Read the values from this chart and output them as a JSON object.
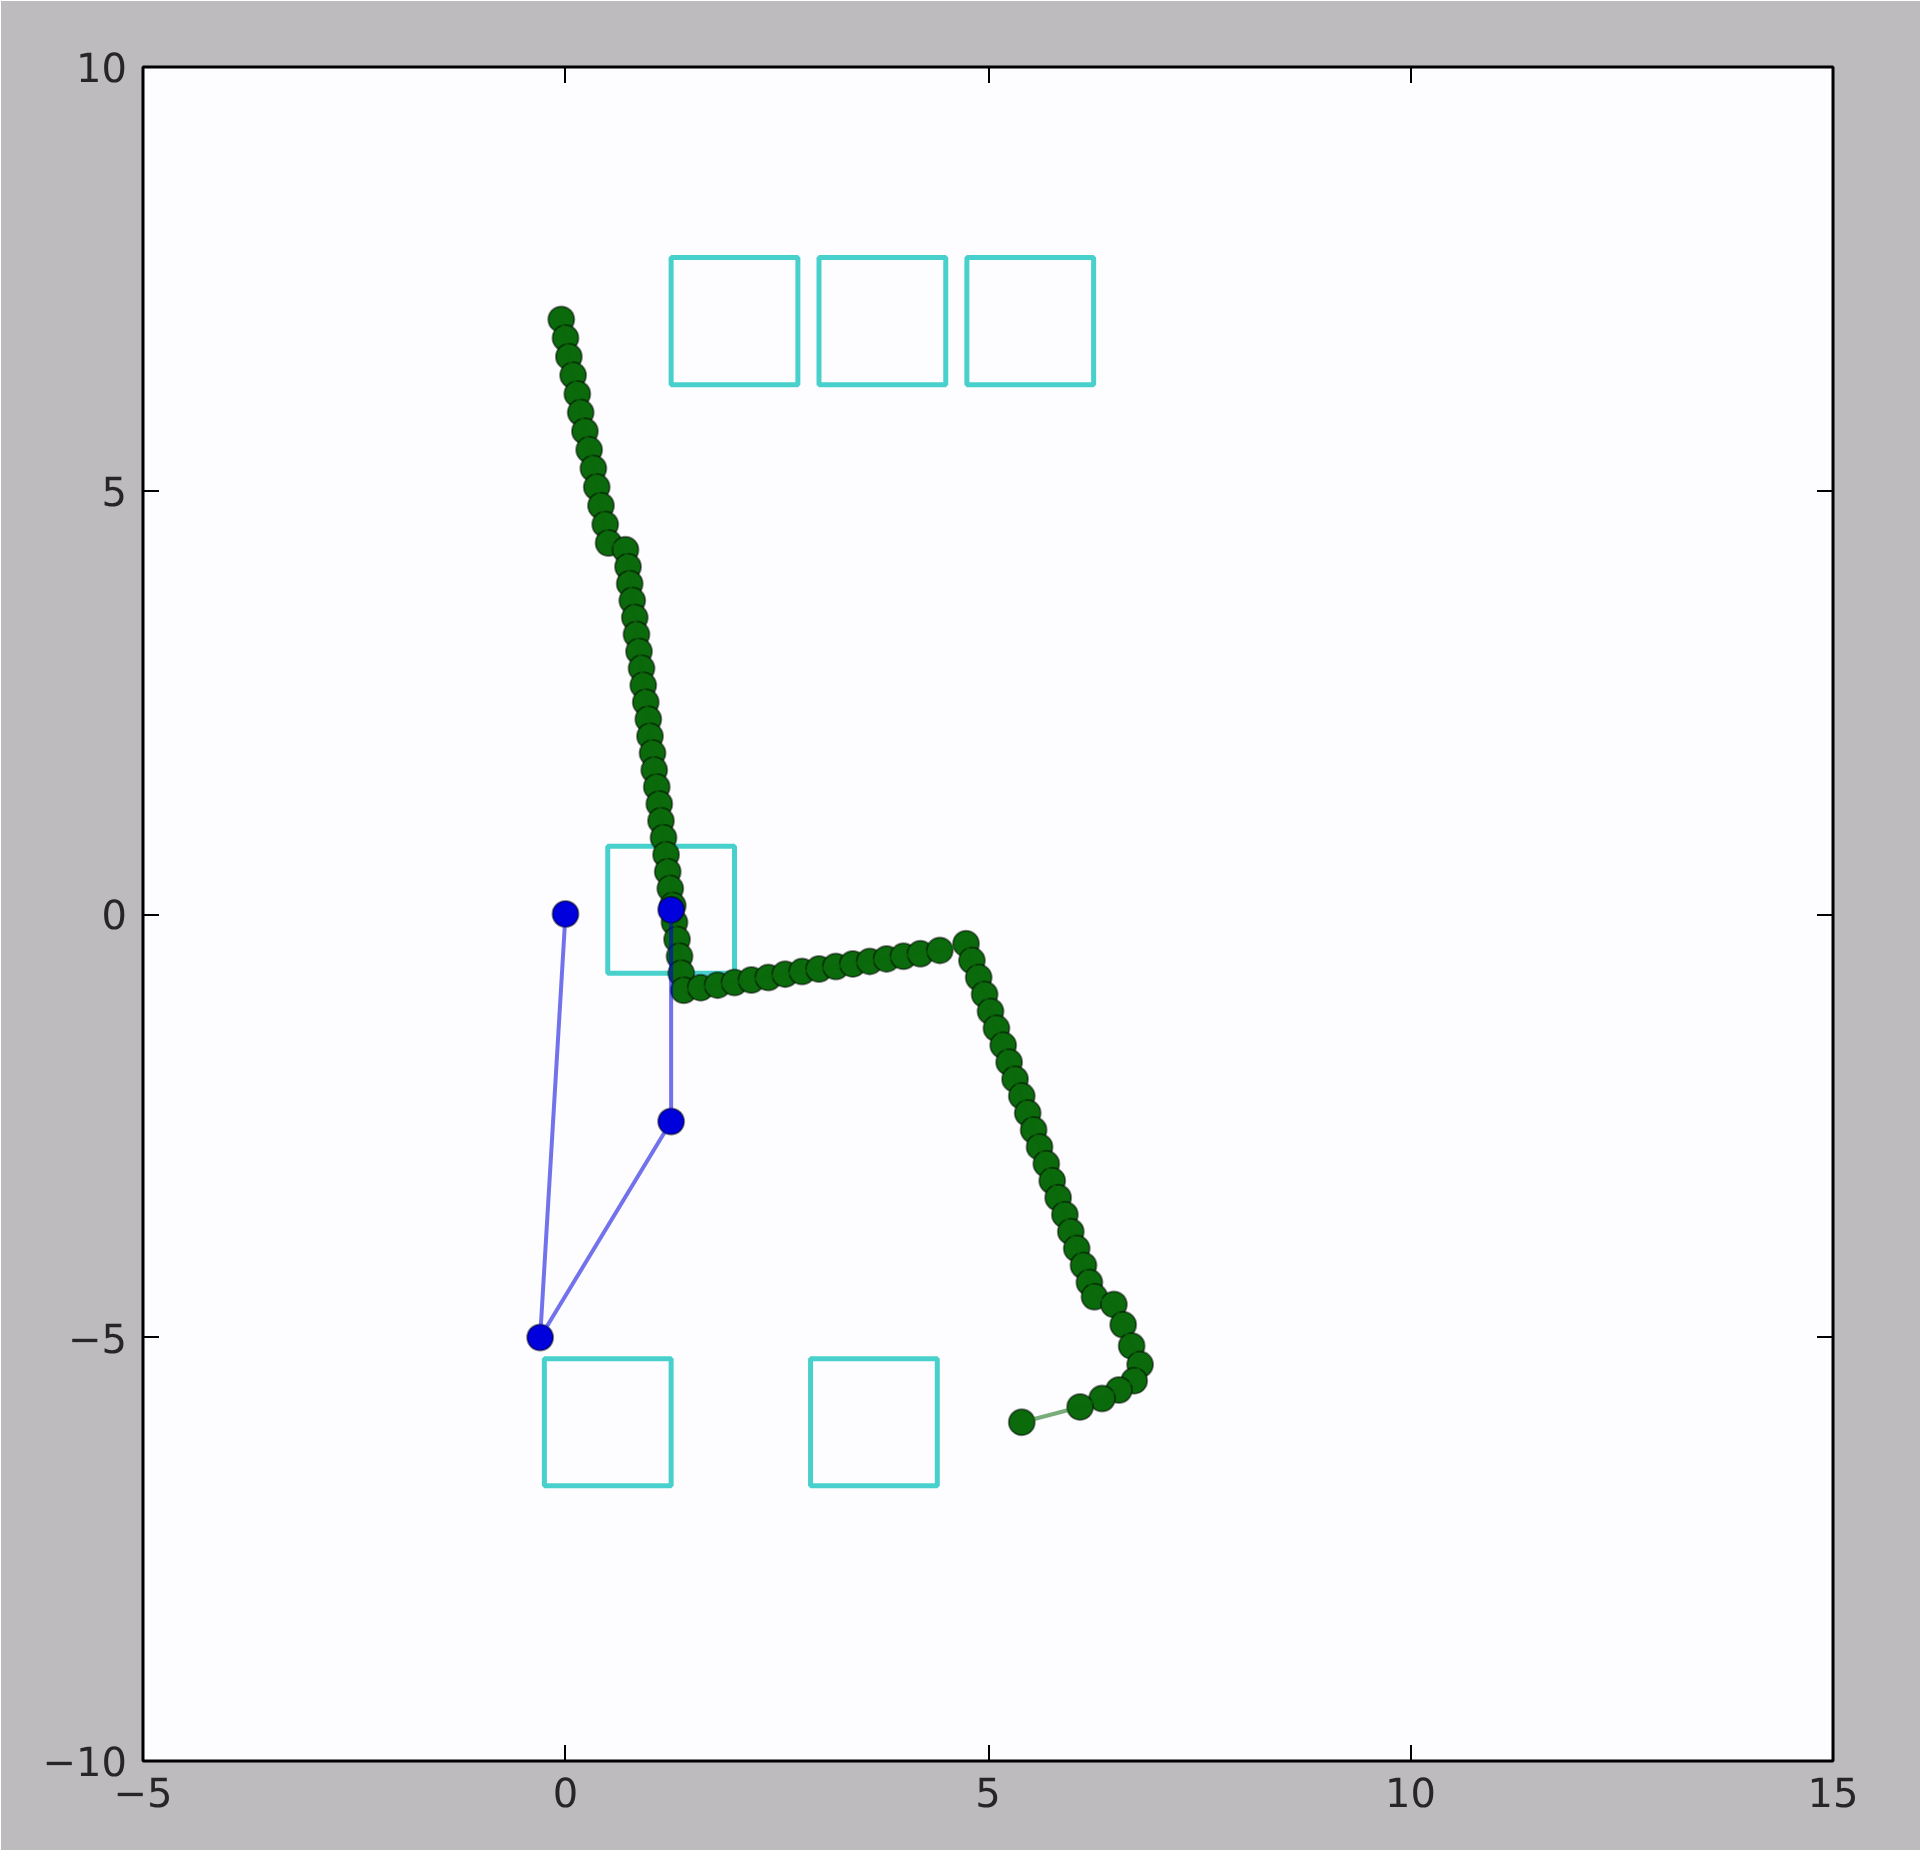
{
  "chart_data": {
    "type": "line",
    "xlim": [
      -5,
      15
    ],
    "ylim": [
      -10,
      10
    ],
    "xticks": [
      -5,
      0,
      5,
      10,
      15
    ],
    "yticks": [
      -10,
      -5,
      0,
      5,
      10
    ],
    "grid": false,
    "series": [
      {
        "type": "bar",
        "color": "#48d1cc",
        "x": [
          0.5,
          1.25,
          2.0,
          3.65,
          3.75,
          5.5
        ],
        "base": [
          -6.75,
          -0.7,
          6.25,
          -6.75,
          6.25,
          6.25
        ],
        "values": [
          1.5,
          1.5,
          1.5,
          1.5,
          1.5,
          1.5
        ]
      },
      {
        "marker": "circle",
        "color": "#0b6a0b",
        "x": [
          -0.05,
          0.0,
          0.04,
          0.09,
          0.14,
          0.18,
          0.23,
          0.28,
          0.33,
          0.37,
          0.42,
          0.47,
          0.51,
          0.71,
          0.74,
          0.76,
          0.79,
          0.82,
          0.84,
          0.87,
          0.9,
          0.92,
          0.95,
          0.98,
          1.0,
          1.03,
          1.05,
          1.08,
          1.11,
          1.13,
          1.16,
          1.19,
          1.21,
          1.24,
          1.27,
          1.29,
          1.32,
          1.35,
          1.37,
          1.4,
          1.6,
          1.8,
          2.0,
          2.2,
          2.4,
          2.6,
          2.8,
          3.0,
          3.2,
          3.4,
          3.6,
          3.8,
          4.0,
          4.2,
          4.43,
          4.74,
          4.81,
          4.89,
          4.96,
          5.03,
          5.1,
          5.18,
          5.25,
          5.32,
          5.4,
          5.47,
          5.54,
          5.61,
          5.69,
          5.76,
          5.83,
          5.91,
          5.98,
          6.05,
          6.13,
          6.2,
          6.26,
          6.49,
          6.6,
          6.7,
          6.8,
          6.73,
          6.55,
          6.35,
          6.09,
          5.4
        ],
        "values": [
          7.02,
          6.8,
          6.58,
          6.36,
          6.14,
          5.92,
          5.7,
          5.48,
          5.26,
          5.04,
          4.82,
          4.6,
          4.38,
          4.3,
          4.1,
          3.9,
          3.7,
          3.5,
          3.3,
          3.1,
          2.9,
          2.7,
          2.5,
          2.3,
          2.1,
          1.9,
          1.7,
          1.5,
          1.3,
          1.1,
          0.9,
          0.7,
          0.5,
          0.3,
          0.1,
          -0.1,
          -0.3,
          -0.5,
          -0.7,
          -0.9,
          -0.87,
          -0.84,
          -0.81,
          -0.78,
          -0.75,
          -0.71,
          -0.68,
          -0.65,
          -0.62,
          -0.59,
          -0.56,
          -0.53,
          -0.5,
          -0.47,
          -0.43,
          -0.35,
          -0.55,
          -0.75,
          -0.95,
          -1.15,
          -1.35,
          -1.55,
          -1.75,
          -1.95,
          -2.15,
          -2.35,
          -2.55,
          -2.75,
          -2.95,
          -3.15,
          -3.35,
          -3.55,
          -3.75,
          -3.95,
          -4.15,
          -4.35,
          -4.52,
          -4.61,
          -4.85,
          -5.1,
          -5.32,
          -5.51,
          -5.62,
          -5.72,
          -5.82,
          -6.0
        ]
      },
      {
        "marker": "circle",
        "color": "#0000dd",
        "x": [
          0.0,
          -0.3,
          1.25,
          1.25
        ],
        "values": [
          0.0,
          -5.0,
          -2.45,
          0.05
        ]
      }
    ]
  }
}
